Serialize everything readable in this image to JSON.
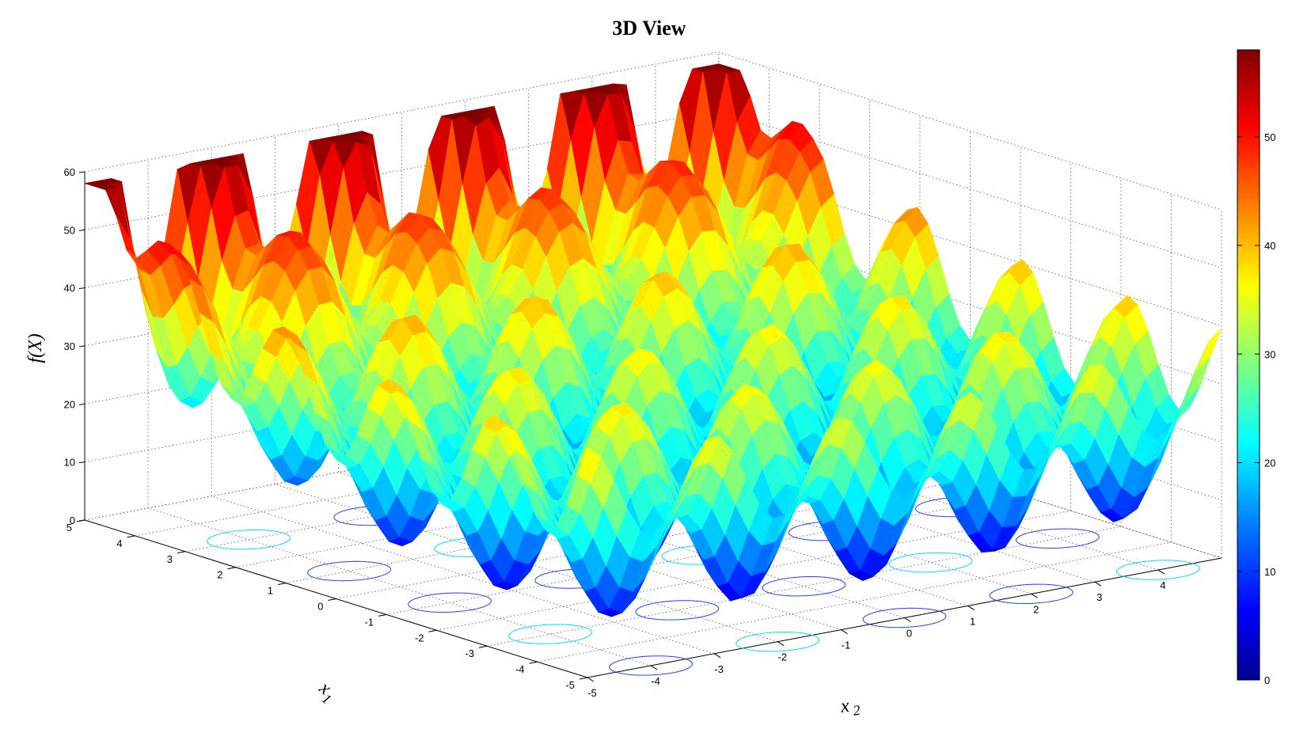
{
  "chart_data": {
    "type": "surface",
    "title": "3D View",
    "xlabel": "x",
    "xlabel_sub": "1",
    "ylabel": "x",
    "ylabel_sub": "2",
    "zlabel": "f(X)",
    "x1_range": [
      -5,
      5
    ],
    "x2_range": [
      -5,
      5
    ],
    "zlim": [
      0,
      60
    ],
    "x1_ticks": [
      "-5",
      "-4",
      "-3",
      "-2",
      "-1",
      "0",
      "1",
      "2",
      "3",
      "4",
      "5"
    ],
    "x2_ticks": [
      "-5",
      "-4",
      "-3",
      "-2",
      "-1",
      "0",
      "1",
      "2",
      "3",
      "4"
    ],
    "z_ticks": [
      "0",
      "10",
      "20",
      "30",
      "40",
      "50",
      "60"
    ],
    "colorbar": {
      "min": 0,
      "max": 58,
      "ticks": [
        "0",
        "10",
        "20",
        "30",
        "40",
        "50"
      ],
      "colormap": "jet"
    },
    "grid": true,
    "contours_on_floor": true,
    "colormap_stops": [
      "#00008f",
      "#0000ff",
      "#0080ff",
      "#00ffff",
      "#80ff80",
      "#ffff00",
      "#ff8000",
      "#ff0000",
      "#800000"
    ],
    "surface_peaks": [
      {
        "x1": 5,
        "x2": -4,
        "z": 55
      },
      {
        "x1": 5,
        "x2": -2,
        "z": 56
      },
      {
        "x1": 5,
        "x2": 0,
        "z": 58
      }
    ]
  }
}
